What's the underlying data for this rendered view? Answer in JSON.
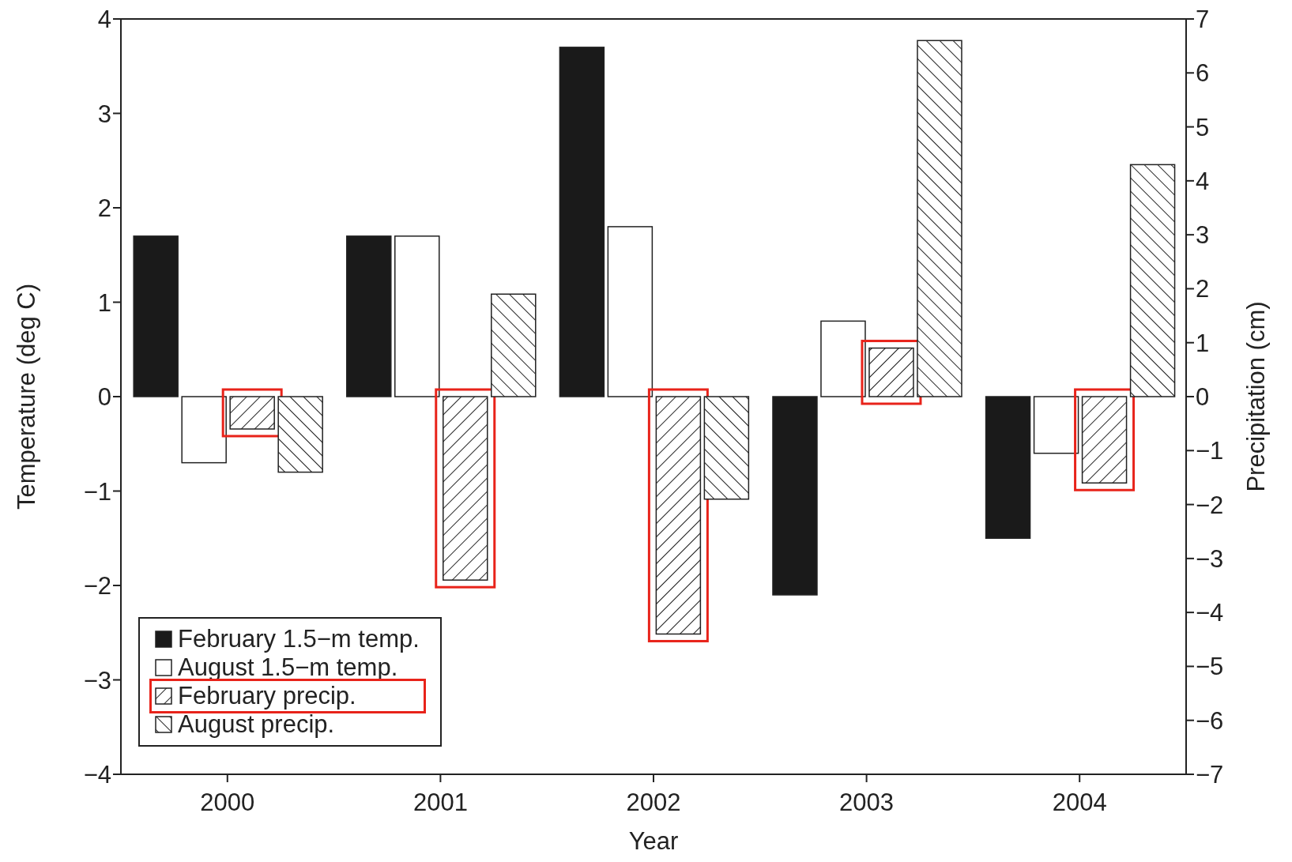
{
  "chart_data": {
    "type": "bar",
    "xlabel": "Year",
    "ylabel": "Temperature (deg C)",
    "y2label": "Precipitation (cm)",
    "categories": [
      "2000",
      "2001",
      "2002",
      "2003",
      "2004"
    ],
    "series": [
      {
        "name": "February 1.5−m temp.",
        "color": "#1a1a1a",
        "values": [
          1.7,
          1.7,
          3.7,
          -2.1,
          -1.5
        ]
      },
      {
        "name": "August 1.5−m temp.",
        "color": "#ffffff",
        "values": [
          -0.7,
          1.7,
          1.8,
          0.8,
          -0.6
        ]
      },
      {
        "name": "February precip.",
        "color": "#222222",
        "axis": "y2",
        "values": [
          -0.6,
          -3.4,
          -4.4,
          0.9,
          -1.6
        ]
      },
      {
        "name": "August precip.",
        "color": "#222222",
        "axis": "y2",
        "values": [
          -1.4,
          1.9,
          -1.9,
          6.6,
          4.3
        ]
      }
    ],
    "ylim": [
      -4,
      4
    ],
    "yticks": [
      -4,
      -3,
      -2,
      -1,
      0,
      1,
      2,
      3,
      4
    ],
    "y2lim": [
      -7,
      7
    ],
    "y2ticks": [
      -7,
      -6,
      -5,
      -4,
      -3,
      -2,
      -1,
      0,
      1,
      2,
      3,
      4,
      5,
      6,
      7
    ],
    "legend": "bottom left"
  }
}
